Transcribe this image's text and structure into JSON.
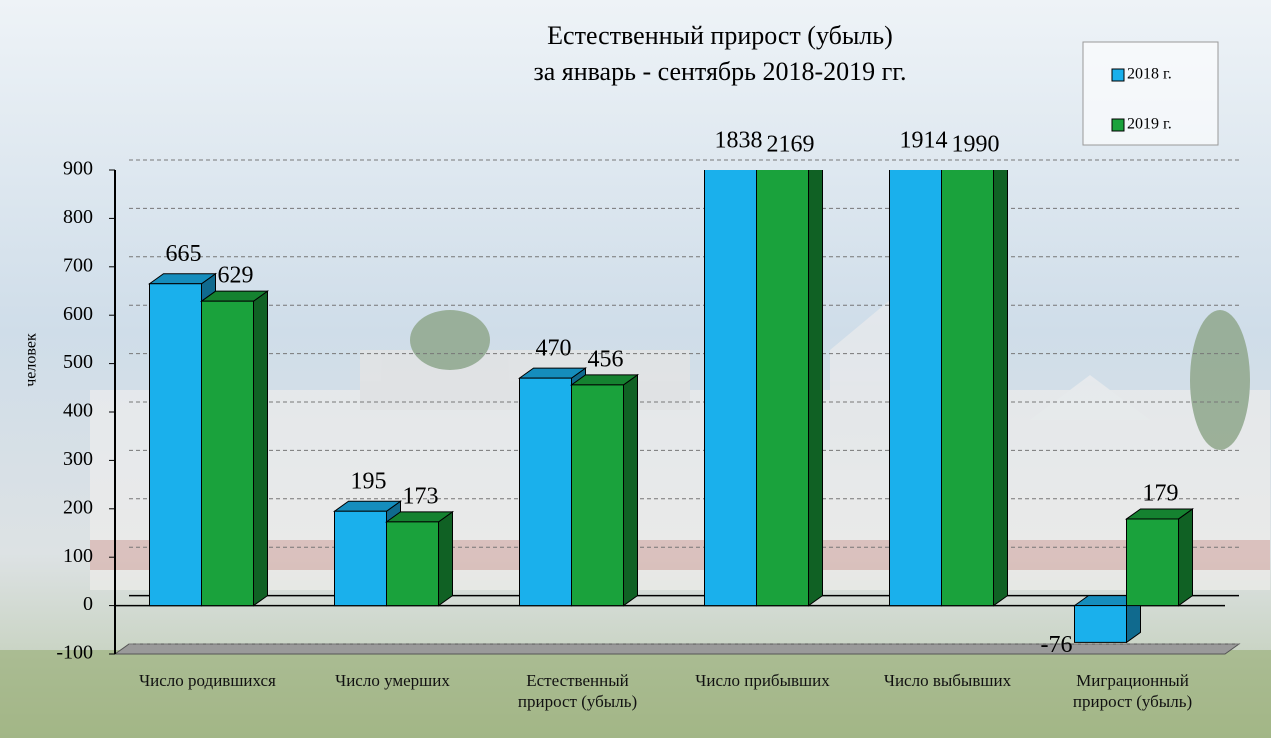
{
  "chart_data": {
    "type": "bar3d",
    "title": "Естественный  прирост (убыль)",
    "subtitle": "за январь - сентябрь 2018-2019 гг.",
    "y_label": "человек",
    "categories": [
      "Число родившихся",
      "Число умерших",
      "Естественный прирост (убыль)",
      "Число прибывших",
      "Число выбывших",
      "Миграционный прирост (убыль)"
    ],
    "series": [
      {
        "name": "2018 г.",
        "color": "#1ab0ec",
        "values": [
          665,
          195,
          470,
          1838,
          1914,
          -76
        ]
      },
      {
        "name": "2019 г.",
        "color": "#1aa23c",
        "values": [
          629,
          173,
          456,
          2169,
          1990,
          179
        ]
      }
    ],
    "ylim": [
      -100,
      900
    ],
    "yticks": [
      -100,
      0,
      100,
      200,
      300,
      400,
      500,
      600,
      700,
      800,
      900
    ],
    "grid": true,
    "legend": "top-right"
  }
}
